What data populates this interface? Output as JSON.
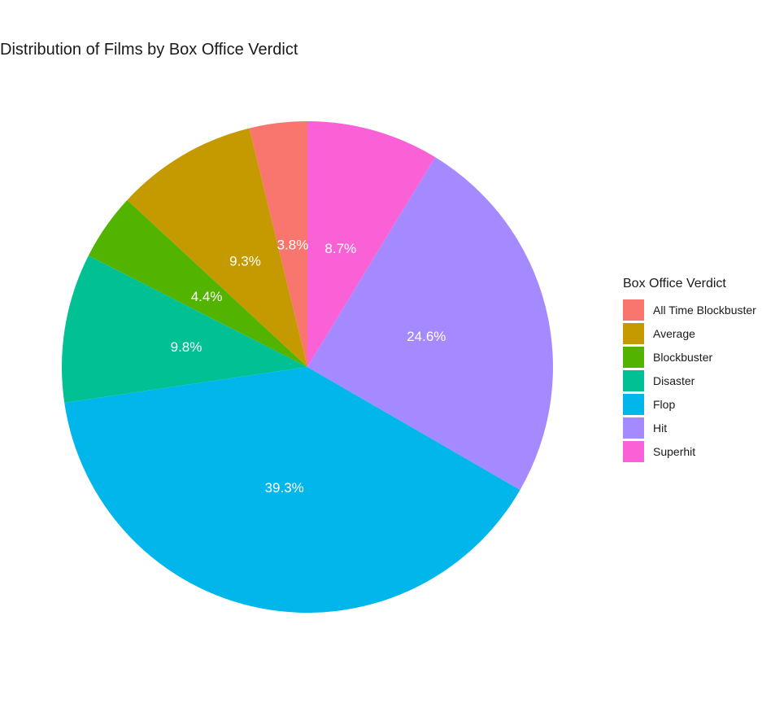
{
  "chart_data": {
    "type": "pie",
    "title": "Distribution of Films by Box Office Verdict",
    "legend_title": "Box Office Verdict",
    "legend_position": "right",
    "slices": [
      {
        "category": "All Time Blockbuster",
        "value": 3.8,
        "label": "3.8%",
        "color": "#F8766D"
      },
      {
        "category": "Average",
        "value": 9.3,
        "label": "9.3%",
        "color": "#C49A00"
      },
      {
        "category": "Blockbuster",
        "value": 4.4,
        "label": "4.4%",
        "color": "#53B400"
      },
      {
        "category": "Disaster",
        "value": 9.8,
        "label": "9.8%",
        "color": "#00C094"
      },
      {
        "category": "Flop",
        "value": 39.3,
        "label": "39.3%",
        "color": "#00B6EB"
      },
      {
        "category": "Hit",
        "value": 24.6,
        "label": "24.6%",
        "color": "#A58AFF"
      },
      {
        "category": "Superhit",
        "value": 8.7,
        "label": "8.7%",
        "color": "#FB61D7"
      }
    ]
  }
}
